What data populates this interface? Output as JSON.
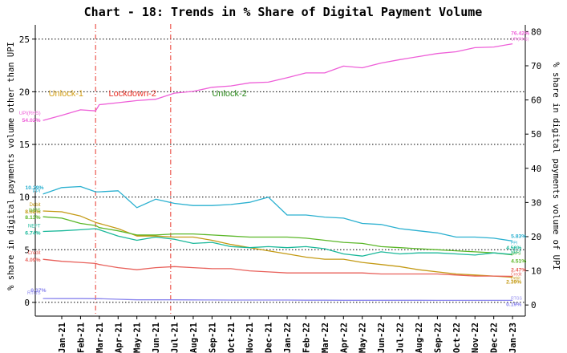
{
  "chart_data": {
    "type": "line",
    "title": "Chart - 18: Trends in % Share of Digital Payment Volume",
    "ylabel_left": "% share in digital payments volume other than UPI",
    "ylabel_right": "% share in digital payments volume of UPI",
    "ylim_left": [
      -1.3,
      26.2
    ],
    "ylim_right": [
      -3.25,
      81.5
    ],
    "yticks_left": [
      "0",
      "5",
      "10",
      "15",
      "20",
      "25"
    ],
    "yticks_right": [
      "0",
      "10",
      "20",
      "30",
      "40",
      "50",
      "60",
      "70",
      "80"
    ],
    "categories": [
      "Jan-21",
      "Feb-21",
      "Mar-21",
      "Apr-21",
      "May-21",
      "Jun-21",
      "Jul-21",
      "Aug-21",
      "Sep-21",
      "Oct-21",
      "Nov-21",
      "Dec-21",
      "Jan-22",
      "Feb-22",
      "Mar-22",
      "Apr-22",
      "May-22",
      "Jun-22",
      "Jul-22",
      "Aug-22",
      "Sep-22",
      "Oct-22",
      "Nov-22",
      "Dec-22",
      "Jan-23"
    ],
    "phases": [
      {
        "label": "Unlock-1",
        "color": "#d4a017"
      },
      {
        "label": "Lockdown-2",
        "color": "#e8362c"
      },
      {
        "label": "Unlock-2",
        "color": "#2e8b1e"
      }
    ],
    "phase_lines": [
      1.8,
      5.8
    ],
    "series": [
      {
        "name": "UPI(RHS)",
        "axis": "right",
        "color": "#ee5fd8",
        "x": [
          -1,
          0,
          1,
          1.8,
          2,
          3,
          4,
          5,
          6,
          7,
          8,
          9,
          10,
          11,
          12,
          13,
          14,
          15,
          16,
          17,
          18,
          19,
          20,
          21,
          22,
          23,
          24
        ],
        "values": [
          54.02,
          55.5,
          57.1,
          56.8,
          58.6,
          59.2,
          59.8,
          60.2,
          62.0,
          62.5,
          63.7,
          64.1,
          65.0,
          65.2,
          66.5,
          67.9,
          67.9,
          69.9,
          69.4,
          70.8,
          71.8,
          72.7,
          73.6,
          74.1,
          75.3,
          75.5,
          76.42
        ],
        "start_label": [
          "UPI(RHS)",
          "54.02%"
        ],
        "end_label": [
          "76.42%",
          "UPI(RHS)"
        ]
      },
      {
        "name": "PPI",
        "axis": "left",
        "color": "#2ab0d0",
        "x": [
          -1,
          0,
          1,
          1.8,
          2,
          3,
          4,
          5,
          6,
          7,
          8,
          9,
          10,
          11,
          12,
          13,
          14,
          15,
          16,
          17,
          18,
          19,
          20,
          21,
          22,
          23,
          24
        ],
        "values": [
          10.29,
          10.9,
          11.0,
          10.5,
          10.5,
          10.6,
          9.0,
          9.8,
          9.4,
          9.2,
          9.2,
          9.3,
          9.5,
          10.0,
          8.3,
          8.3,
          8.1,
          8.0,
          7.5,
          7.4,
          7.0,
          6.8,
          6.6,
          6.2,
          6.2,
          6.1,
          5.83
        ],
        "start_label": [
          "PPI",
          "10.29%"
        ],
        "end_label": [
          "5.83%",
          "PPI"
        ]
      },
      {
        "name": "Debit",
        "axis": "left",
        "color": "#c49a14",
        "x": [
          -1,
          0,
          1,
          1.8,
          2,
          3,
          4,
          5,
          6,
          7,
          8,
          9,
          10,
          11,
          12,
          13,
          14,
          15,
          16,
          17,
          18,
          19,
          20,
          21,
          22,
          23,
          24
        ],
        "values": [
          8.68,
          8.6,
          8.2,
          7.6,
          7.5,
          7.0,
          6.3,
          6.3,
          6.2,
          6.2,
          5.9,
          5.5,
          5.2,
          4.9,
          4.6,
          4.3,
          4.1,
          4.1,
          3.8,
          3.6,
          3.4,
          3.1,
          2.9,
          2.7,
          2.6,
          2.5,
          2.39
        ],
        "start_label": [
          "Debit",
          "8.68%"
        ],
        "end_label": [
          "2.39%",
          "Debit"
        ]
      },
      {
        "name": "IMPS",
        "axis": "left",
        "color": "#5bb728",
        "x": [
          -1,
          0,
          1,
          1.8,
          2,
          3,
          4,
          5,
          6,
          7,
          8,
          9,
          10,
          11,
          12,
          13,
          14,
          15,
          16,
          17,
          18,
          19,
          20,
          21,
          22,
          23,
          24
        ],
        "values": [
          8.13,
          8.0,
          7.5,
          7.3,
          7.1,
          6.8,
          6.4,
          6.4,
          6.5,
          6.5,
          6.4,
          6.3,
          6.2,
          6.2,
          6.2,
          6.1,
          5.9,
          5.7,
          5.6,
          5.3,
          5.2,
          5.1,
          5.0,
          4.9,
          4.8,
          4.7,
          4.51
        ],
        "start_label": [
          "IMPS",
          "8.13%"
        ],
        "end_label": [
          "4.51%",
          "IMPS"
        ]
      },
      {
        "name": "NEFT",
        "axis": "left",
        "color": "#1bb89a",
        "x": [
          -1,
          0,
          1,
          1.8,
          2,
          3,
          4,
          5,
          6,
          7,
          8,
          9,
          10,
          11,
          12,
          13,
          14,
          15,
          16,
          17,
          18,
          19,
          20,
          21,
          22,
          23,
          24
        ],
        "values": [
          6.74,
          6.8,
          6.9,
          7.0,
          6.9,
          6.3,
          5.9,
          6.2,
          6.0,
          5.6,
          5.7,
          5.3,
          5.2,
          5.3,
          5.2,
          5.3,
          5.1,
          4.6,
          4.4,
          4.8,
          4.6,
          4.7,
          4.7,
          4.6,
          4.5,
          4.7,
          4.56
        ],
        "start_label": [
          "NEFT",
          "6.74%"
        ],
        "end_label": [
          "4.56%",
          "NEFT"
        ]
      },
      {
        "name": "Credit",
        "axis": "left",
        "color": "#e8605a",
        "x": [
          -1,
          0,
          1,
          1.8,
          2,
          3,
          4,
          5,
          6,
          7,
          8,
          9,
          10,
          11,
          12,
          13,
          14,
          15,
          16,
          17,
          18,
          19,
          20,
          21,
          22,
          23,
          24
        ],
        "values": [
          4.09,
          3.9,
          3.8,
          3.7,
          3.6,
          3.3,
          3.1,
          3.3,
          3.4,
          3.3,
          3.2,
          3.2,
          3.0,
          2.9,
          2.8,
          2.8,
          2.8,
          2.8,
          2.8,
          2.7,
          2.7,
          2.7,
          2.7,
          2.6,
          2.5,
          2.5,
          2.47
        ],
        "start_label": [
          "Credit",
          "4.09%"
        ],
        "end_label": [
          "2.47%",
          "Credit"
        ]
      },
      {
        "name": "RTGS",
        "axis": "left",
        "color": "#8a85ee",
        "x": [
          -1,
          0,
          1,
          1.8,
          2,
          3,
          4,
          5,
          6,
          7,
          8,
          9,
          10,
          11,
          12,
          13,
          14,
          15,
          16,
          17,
          18,
          19,
          20,
          21,
          22,
          23,
          24
        ],
        "values": [
          0.37,
          0.36,
          0.36,
          0.35,
          0.35,
          0.3,
          0.25,
          0.25,
          0.25,
          0.24,
          0.23,
          0.22,
          0.22,
          0.22,
          0.22,
          0.21,
          0.21,
          0.2,
          0.2,
          0.2,
          0.2,
          0.2,
          0.19,
          0.19,
          0.19,
          0.19,
          0.19
        ],
        "start_label": [
          "RTGS",
          "0.37%"
        ],
        "end_label": [
          "0.19%",
          "RTGS"
        ]
      }
    ]
  }
}
